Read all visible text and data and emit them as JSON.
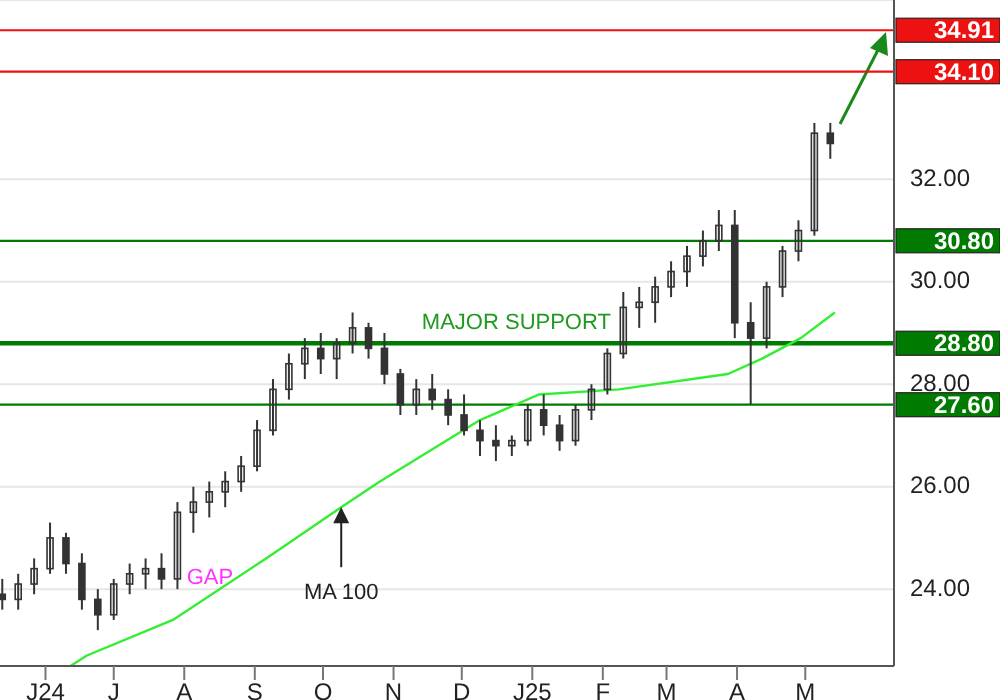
{
  "chart_data": {
    "type": "candlestick",
    "color": "#333333",
    "x": [
      "2024-05-13",
      "2024-05-20",
      "2024-05-27",
      "2024-06-03",
      "2024-06-10",
      "2024-06-17",
      "2024-06-24",
      "2024-07-01",
      "2024-07-08",
      "2024-07-15",
      "2024-07-22",
      "2024-07-29",
      "2024-08-05",
      "2024-08-12",
      "2024-08-19",
      "2024-08-26",
      "2024-09-02",
      "2024-09-09",
      "2024-09-16",
      "2024-09-23",
      "2024-09-30",
      "2024-10-07",
      "2024-10-14",
      "2024-10-21",
      "2024-10-28",
      "2024-11-04",
      "2024-11-11",
      "2024-11-18",
      "2024-11-25",
      "2024-12-02",
      "2024-12-09",
      "2024-12-16",
      "2024-12-23",
      "2024-12-30",
      "2025-01-06",
      "2025-01-13",
      "2025-01-20",
      "2025-01-27",
      "2025-02-03",
      "2025-02-10",
      "2025-02-17",
      "2025-02-24",
      "2025-03-03",
      "2025-03-10",
      "2025-03-17",
      "2025-03-24",
      "2025-03-31",
      "2025-04-07",
      "2025-04-14",
      "2025-04-21",
      "2025-04-28",
      "2025-05-05",
      "2025-05-12"
    ],
    "ohlc": [
      [
        23.9,
        24.2,
        23.6,
        23.8
      ],
      [
        23.8,
        24.3,
        23.6,
        24.1
      ],
      [
        24.1,
        24.6,
        23.9,
        24.4
      ],
      [
        24.4,
        25.3,
        24.3,
        25.0
      ],
      [
        25.0,
        25.1,
        24.3,
        24.5
      ],
      [
        24.5,
        24.7,
        23.6,
        23.8
      ],
      [
        23.8,
        24.0,
        23.2,
        23.5
      ],
      [
        23.5,
        24.2,
        23.4,
        24.1
      ],
      [
        24.1,
        24.5,
        23.9,
        24.3
      ],
      [
        24.3,
        24.6,
        24.0,
        24.4
      ],
      [
        24.4,
        24.7,
        24.0,
        24.2
      ],
      [
        24.2,
        25.7,
        24.0,
        25.5
      ],
      [
        25.5,
        26.0,
        25.1,
        25.7
      ],
      [
        25.7,
        26.1,
        25.4,
        25.9
      ],
      [
        25.9,
        26.3,
        25.6,
        26.1
      ],
      [
        26.1,
        26.6,
        25.9,
        26.4
      ],
      [
        26.4,
        27.3,
        26.3,
        27.1
      ],
      [
        27.1,
        28.1,
        27.0,
        27.9
      ],
      [
        27.9,
        28.6,
        27.7,
        28.4
      ],
      [
        28.4,
        28.9,
        28.1,
        28.7
      ],
      [
        28.7,
        29.0,
        28.2,
        28.5
      ],
      [
        28.5,
        28.9,
        28.1,
        28.8
      ],
      [
        28.8,
        29.4,
        28.6,
        29.1
      ],
      [
        29.1,
        29.2,
        28.5,
        28.7
      ],
      [
        28.7,
        29.0,
        28.0,
        28.2
      ],
      [
        28.2,
        28.3,
        27.4,
        27.6
      ],
      [
        27.6,
        28.1,
        27.4,
        27.9
      ],
      [
        27.9,
        28.2,
        27.5,
        27.7
      ],
      [
        27.7,
        27.9,
        27.2,
        27.4
      ],
      [
        27.4,
        27.8,
        27.0,
        27.1
      ],
      [
        27.1,
        27.3,
        26.6,
        26.9
      ],
      [
        26.9,
        27.2,
        26.5,
        26.8
      ],
      [
        26.8,
        27.0,
        26.6,
        26.9
      ],
      [
        26.9,
        27.6,
        26.8,
        27.5
      ],
      [
        27.5,
        27.8,
        27.0,
        27.2
      ],
      [
        27.2,
        27.4,
        26.7,
        26.9
      ],
      [
        26.9,
        27.6,
        26.8,
        27.5
      ],
      [
        27.5,
        28.0,
        27.3,
        27.9
      ],
      [
        27.9,
        28.7,
        27.8,
        28.6
      ],
      [
        28.6,
        29.8,
        28.5,
        29.5
      ],
      [
        29.5,
        29.9,
        29.1,
        29.6
      ],
      [
        29.6,
        30.1,
        29.2,
        29.9
      ],
      [
        29.9,
        30.4,
        29.7,
        30.2
      ],
      [
        30.2,
        30.7,
        29.9,
        30.5
      ],
      [
        30.5,
        31.0,
        30.3,
        30.8
      ],
      [
        30.8,
        31.4,
        30.6,
        31.1
      ],
      [
        31.1,
        31.4,
        28.9,
        29.2
      ],
      [
        29.2,
        29.6,
        27.6,
        28.9
      ],
      [
        28.9,
        30.0,
        28.7,
        29.9
      ],
      [
        29.9,
        30.7,
        29.7,
        30.6
      ],
      [
        30.6,
        31.2,
        30.4,
        31.0
      ],
      [
        31.0,
        33.1,
        30.9,
        32.9
      ],
      [
        32.9,
        33.1,
        32.4,
        32.7
      ]
    ],
    "series": [
      {
        "type": "line",
        "color": "#33ee33",
        "x": [
          "2024-06-12",
          "2024-06-19",
          "2024-07-27",
          "2024-09-06",
          "2024-10-09",
          "2024-10-26",
          "2024-12-09",
          "2025-01-04",
          "2025-02-08",
          "2025-03-28",
          "2025-04-12",
          "2025-04-29",
          "2025-05-14"
        ],
        "values": [
          22.5,
          22.7,
          23.4,
          24.6,
          25.6,
          26.1,
          27.3,
          27.8,
          27.9,
          28.2,
          28.5,
          28.9,
          29.4
        ]
      }
    ],
    "xlim": [
      "2024-05-12",
      "2025-06-09"
    ],
    "xticks": [
      {
        "value": "2024-06-01",
        "label": "J24"
      },
      {
        "value": "2024-07-01",
        "label": "J"
      },
      {
        "value": "2024-08-01",
        "label": "A"
      },
      {
        "value": "2024-09-01",
        "label": "S"
      },
      {
        "value": "2024-10-01",
        "label": "O"
      },
      {
        "value": "2024-11-01",
        "label": "N"
      },
      {
        "value": "2024-12-01",
        "label": "D"
      },
      {
        "value": "2025-01-01",
        "label": "J25"
      },
      {
        "value": "2025-02-01",
        "label": "F"
      },
      {
        "value": "2025-03-01",
        "label": "M"
      },
      {
        "value": "2025-04-01",
        "label": "A"
      },
      {
        "value": "2025-05-01",
        "label": "M"
      }
    ],
    "ylim": [
      22.5,
      35.5
    ],
    "yticks": [
      {
        "value": 24,
        "label": "24.00"
      },
      {
        "value": 26,
        "label": "26.00"
      },
      {
        "value": 28,
        "label": "28.00"
      },
      {
        "value": 30,
        "label": "30.00"
      },
      {
        "value": 32,
        "label": "32.00"
      }
    ],
    "grid": "y",
    "ref_lines": [
      {
        "axis": "y",
        "value": 34.91,
        "label": "34.91",
        "color": "#ee1111"
      },
      {
        "axis": "y",
        "value": 34.1,
        "label": "34.10",
        "color": "#ee1111"
      },
      {
        "axis": "y",
        "value": 30.8,
        "label": "30.80",
        "color": "#007a00"
      },
      {
        "axis": "y",
        "value": 28.8,
        "label": "28.80",
        "color": "#007a00"
      },
      {
        "axis": "y",
        "value": 27.6,
        "label": "27.60",
        "color": "#007a00"
      }
    ],
    "annotations": [
      "GAP",
      {
        "text": "MA 100",
        "x": "2024-10-09",
        "y": 25.6
      },
      {
        "text": "MAJOR SUPPORT",
        "x": "2024-12-25",
        "y": 28.8
      }
    ]
  }
}
